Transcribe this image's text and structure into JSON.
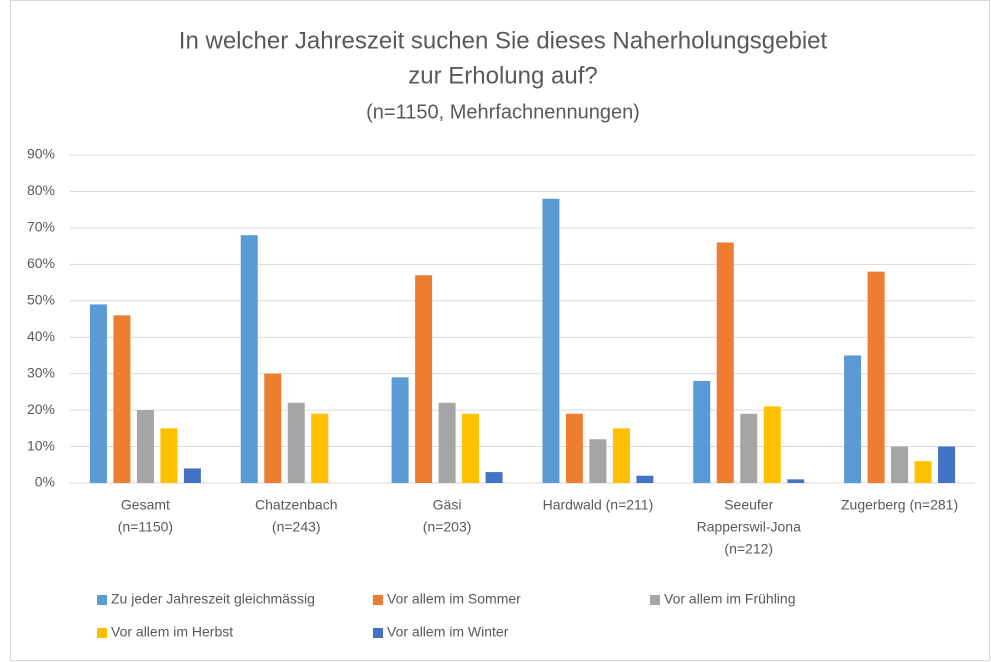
{
  "chart_data": {
    "type": "bar",
    "title": [
      "In welcher Jahreszeit suchen Sie dieses Naherholungsgebiet",
      "zur Erholung auf?"
    ],
    "subtitle": "(n=1150, Mehrfachnennungen)",
    "categories": [
      [
        "Gesamt",
        "(n=1150)"
      ],
      [
        "Chatzenbach",
        "(n=243)"
      ],
      [
        "Gäsi",
        "(n=203)"
      ],
      [
        "Hardwald (n=211)"
      ],
      [
        "Seeufer",
        "Rapperswil-Jona",
        "(n=212)"
      ],
      [
        "Zugerberg (n=281)"
      ]
    ],
    "series": [
      {
        "name": "Zu jeder Jahreszeit gleichmässig",
        "color": "#5b9bd5",
        "values": [
          49,
          68,
          29,
          78,
          28,
          35
        ]
      },
      {
        "name": "Vor allem im Sommer",
        "color": "#ed7d31",
        "values": [
          46,
          30,
          57,
          19,
          66,
          58
        ]
      },
      {
        "name": "Vor allem im Frühling",
        "color": "#a5a5a5",
        "values": [
          20,
          22,
          22,
          12,
          19,
          10
        ]
      },
      {
        "name": "Vor allem im Herbst",
        "color": "#ffc000",
        "values": [
          15,
          19,
          19,
          15,
          21,
          6
        ]
      },
      {
        "name": "Vor allem im Winter",
        "color": "#4472c4",
        "values": [
          4,
          0,
          3,
          2,
          1,
          10
        ]
      }
    ],
    "ylim": [
      0,
      90
    ],
    "yticks": [
      {
        "value": 0,
        "label": "0%"
      },
      {
        "value": 10,
        "label": "10%"
      },
      {
        "value": 20,
        "label": "20%"
      },
      {
        "value": 30,
        "label": "30%"
      },
      {
        "value": 40,
        "label": "40%"
      },
      {
        "value": 50,
        "label": "50%"
      },
      {
        "value": 60,
        "label": "60%"
      },
      {
        "value": 70,
        "label": "70%"
      },
      {
        "value": 80,
        "label": "80%"
      },
      {
        "value": 90,
        "label": "90%"
      }
    ],
    "grid": true,
    "legend": "bottom"
  }
}
